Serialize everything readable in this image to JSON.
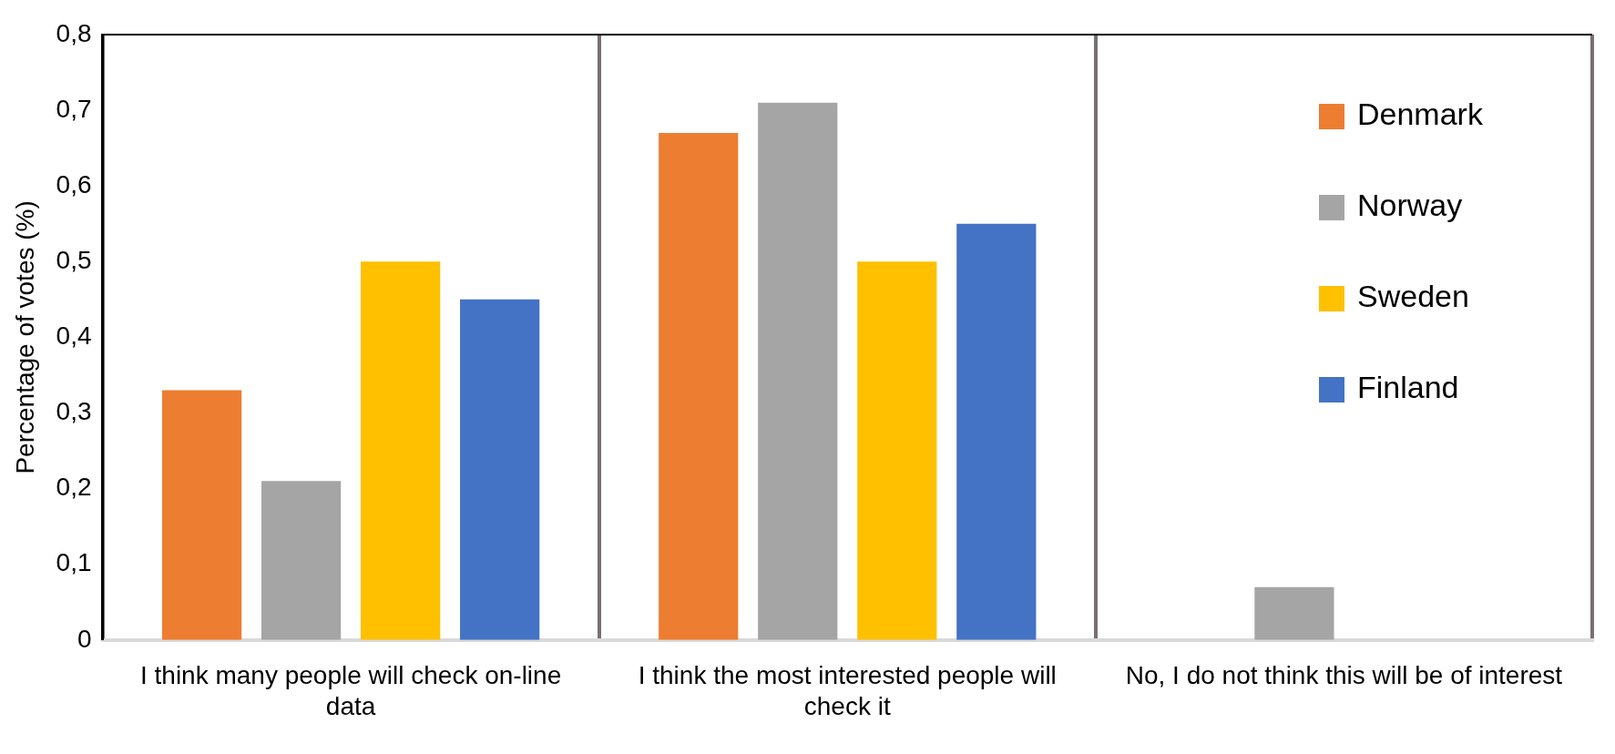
{
  "chart_data": {
    "type": "bar",
    "ylabel": "Percentage of votes (%)",
    "categories": [
      "I think many people will check on-line data",
      "I think the most interested people will check it",
      "No, I do not think this will be of interest"
    ],
    "series": [
      {
        "name": "Denmark",
        "color": "#ed7d31",
        "values": [
          0.33,
          0.67,
          0
        ]
      },
      {
        "name": "Norway",
        "color": "#a5a5a5",
        "values": [
          0.21,
          0.71,
          0.07
        ]
      },
      {
        "name": "Sweden",
        "color": "#ffc000",
        "values": [
          0.5,
          0.5,
          0
        ]
      },
      {
        "name": "Finland",
        "color": "#4472c4",
        "values": [
          0.45,
          0.55,
          0
        ]
      }
    ],
    "ylim": [
      0,
      0.8
    ],
    "yticks": [
      {
        "value": 0,
        "label": "0"
      },
      {
        "value": 0.1,
        "label": "0,1"
      },
      {
        "value": 0.2,
        "label": "0,2"
      },
      {
        "value": 0.3,
        "label": "0,3"
      },
      {
        "value": 0.4,
        "label": "0,4"
      },
      {
        "value": 0.5,
        "label": "0,5"
      },
      {
        "value": 0.6,
        "label": "0,6"
      },
      {
        "value": 0.7,
        "label": "0,7"
      },
      {
        "value": 0.8,
        "label": "0,8"
      }
    ],
    "grid": "x",
    "legend": "top right"
  }
}
